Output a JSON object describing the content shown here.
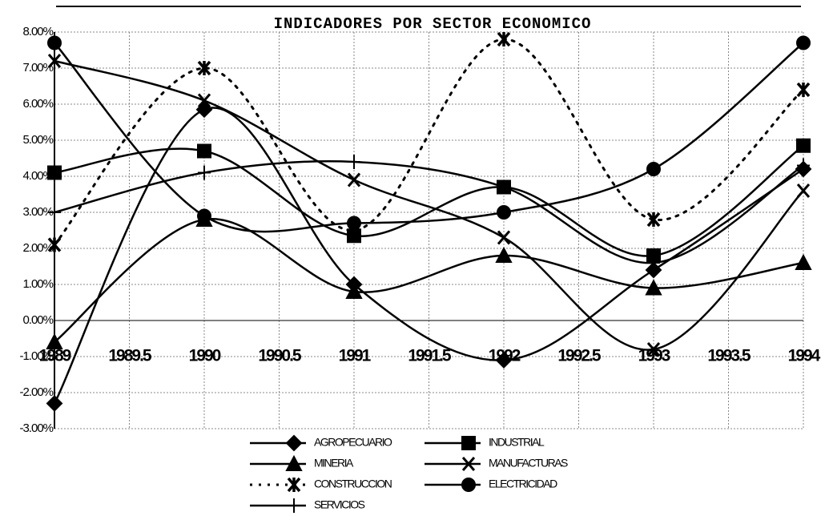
{
  "chart_data": {
    "type": "line",
    "title": "INDICADORES POR SECTOR ECONOMICO",
    "x": [
      1989,
      1990,
      1991,
      1992,
      1993,
      1994
    ],
    "xlim": [
      1989,
      1994
    ],
    "xticks": [
      1989,
      1989.5,
      1990,
      1990.5,
      1991,
      1991.5,
      1992,
      1992.5,
      1993,
      1993.5,
      1994
    ],
    "ylim": [
      -3,
      8
    ],
    "yticks": [
      {
        "value": -3,
        "label": "-3.00%"
      },
      {
        "value": -2,
        "label": "-2.00%"
      },
      {
        "value": -1,
        "label": "-1.00%"
      },
      {
        "value": 0,
        "label": "0.00%"
      },
      {
        "value": 1,
        "label": "1.00%"
      },
      {
        "value": 2,
        "label": "2.00%"
      },
      {
        "value": 3,
        "label": "3.00%"
      },
      {
        "value": 4,
        "label": "4.00%"
      },
      {
        "value": 5,
        "label": "5.00%"
      },
      {
        "value": 6,
        "label": "6.00%"
      },
      {
        "value": 7,
        "label": "7.00%"
      },
      {
        "value": 8,
        "label": "8.00%"
      }
    ],
    "grid": true,
    "series": [
      {
        "name": "AGROPECUARIO",
        "color": "#000000",
        "marker": "diamond",
        "values": [
          -2.3,
          5.85,
          1.0,
          -1.1,
          1.4,
          4.2
        ]
      },
      {
        "name": "INDUSTRIAL",
        "color": "#000000",
        "marker": "square",
        "values": [
          4.1,
          4.7,
          2.35,
          3.7,
          1.8,
          4.85
        ]
      },
      {
        "name": "MINERIA",
        "color": "#000000",
        "marker": "triangle",
        "values": [
          -0.6,
          2.8,
          0.8,
          1.8,
          0.9,
          1.6
        ]
      },
      {
        "name": "MANUFACTURAS",
        "color": "#000000",
        "marker": "x",
        "values": [
          7.2,
          6.1,
          3.9,
          2.3,
          -0.8,
          3.6
        ]
      },
      {
        "name": "CONSTRUCCION",
        "color": "#000000",
        "marker": "asterisk",
        "dash": "dotted",
        "values": [
          2.1,
          7.0,
          2.5,
          7.8,
          2.8,
          6.4
        ]
      },
      {
        "name": "ELECTRICIDAD",
        "color": "#000000",
        "marker": "circle",
        "values": [
          7.7,
          2.9,
          2.7,
          3.0,
          4.2,
          7.7
        ]
      },
      {
        "name": "SERVICIOS",
        "color": "#000000",
        "marker": "plus",
        "values": [
          3.0,
          4.1,
          4.4,
          3.7,
          1.6,
          4.3
        ]
      }
    ]
  }
}
